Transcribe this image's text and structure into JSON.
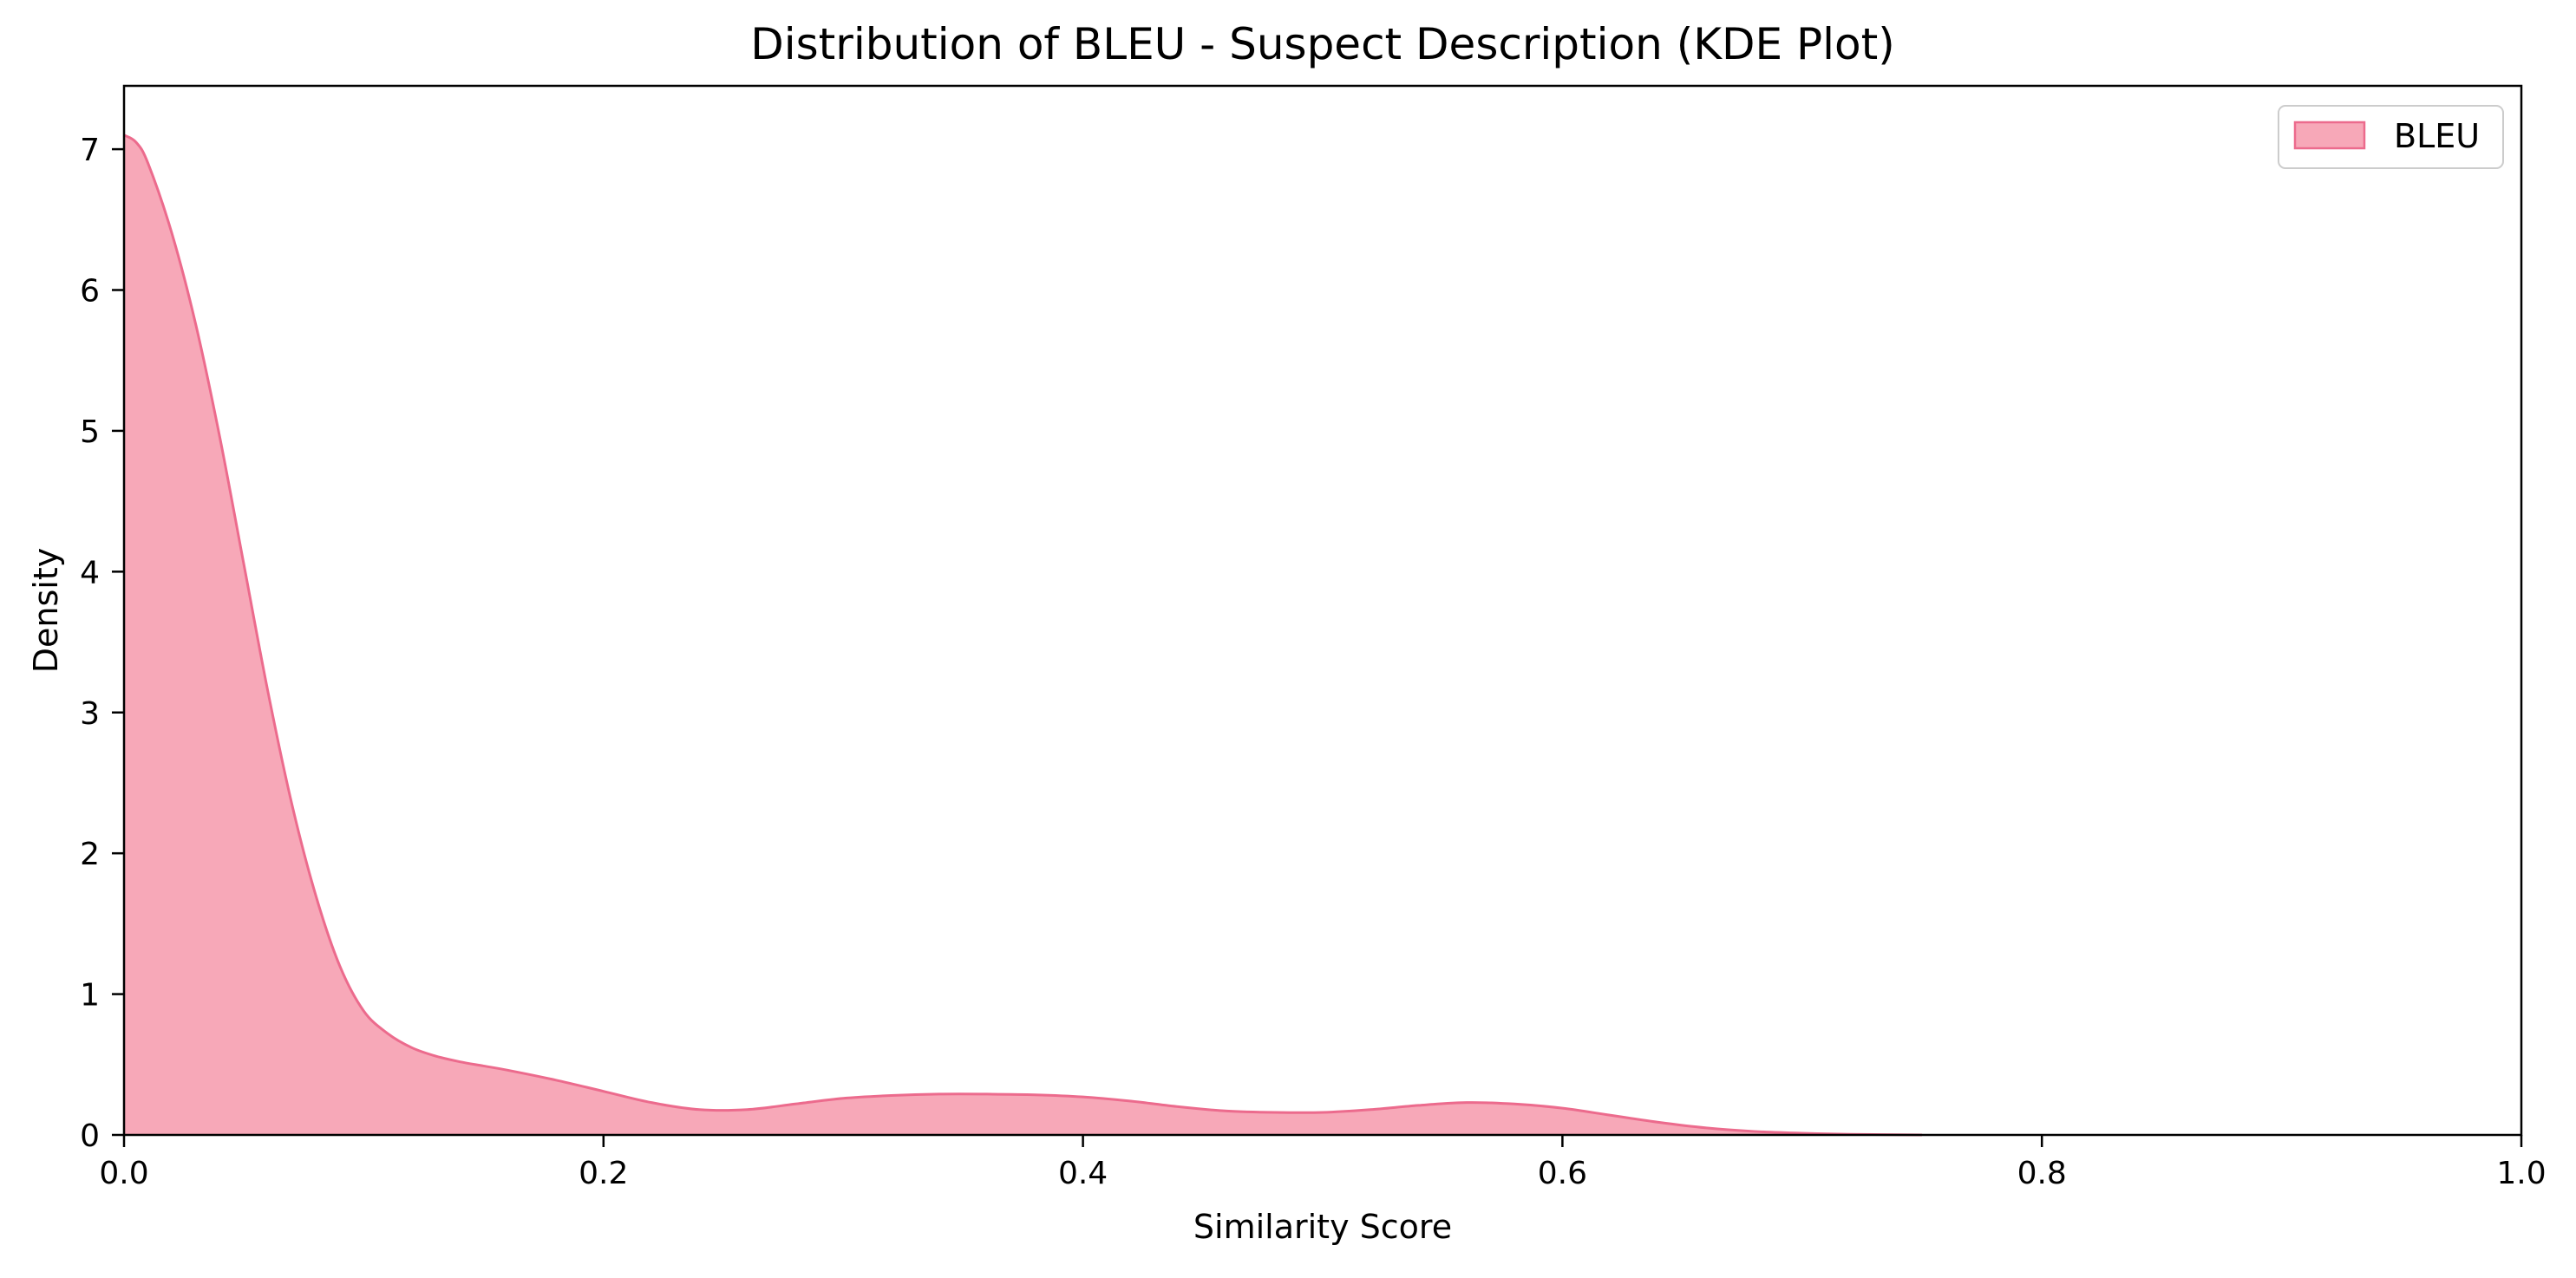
{
  "chart_data": {
    "type": "area",
    "title": "Distribution of BLEU - Suspect Description (KDE Plot)",
    "xlabel": "Similarity Score",
    "ylabel": "Density",
    "xlim": [
      0,
      1.0
    ],
    "ylim": [
      0,
      7.45
    ],
    "xticks": [
      0.0,
      0.2,
      0.4,
      0.6,
      0.8,
      1.0
    ],
    "xtick_labels": [
      "0.0",
      "0.2",
      "0.4",
      "0.6",
      "0.8",
      "1.0"
    ],
    "yticks": [
      0,
      1,
      2,
      3,
      4,
      5,
      6,
      7
    ],
    "ytick_labels": [
      "0",
      "1",
      "2",
      "3",
      "4",
      "5",
      "6",
      "7"
    ],
    "grid": false,
    "legend": {
      "position": "top-right",
      "entries": [
        "BLEU"
      ]
    },
    "colors": {
      "fill": "#f7a8b8",
      "line": "#ec6b8d",
      "axis": "#000000",
      "legend_border": "#cccccc"
    },
    "series": [
      {
        "name": "BLEU",
        "x": [
          0.0,
          0.005,
          0.01,
          0.02,
          0.03,
          0.04,
          0.05,
          0.06,
          0.07,
          0.08,
          0.09,
          0.1,
          0.11,
          0.12,
          0.13,
          0.14,
          0.15,
          0.16,
          0.18,
          0.2,
          0.22,
          0.24,
          0.26,
          0.28,
          0.3,
          0.32,
          0.34,
          0.36,
          0.38,
          0.4,
          0.42,
          0.44,
          0.46,
          0.48,
          0.5,
          0.52,
          0.54,
          0.56,
          0.58,
          0.6,
          0.62,
          0.64,
          0.66,
          0.68,
          0.7,
          0.72,
          0.75
        ],
        "y": [
          7.1,
          7.05,
          6.9,
          6.4,
          5.75,
          4.95,
          4.05,
          3.15,
          2.35,
          1.7,
          1.2,
          0.88,
          0.72,
          0.62,
          0.56,
          0.52,
          0.49,
          0.46,
          0.39,
          0.31,
          0.23,
          0.18,
          0.18,
          0.22,
          0.26,
          0.28,
          0.29,
          0.29,
          0.285,
          0.27,
          0.24,
          0.2,
          0.17,
          0.16,
          0.16,
          0.18,
          0.21,
          0.23,
          0.22,
          0.19,
          0.14,
          0.09,
          0.05,
          0.025,
          0.012,
          0.005,
          0.0
        ]
      }
    ]
  }
}
